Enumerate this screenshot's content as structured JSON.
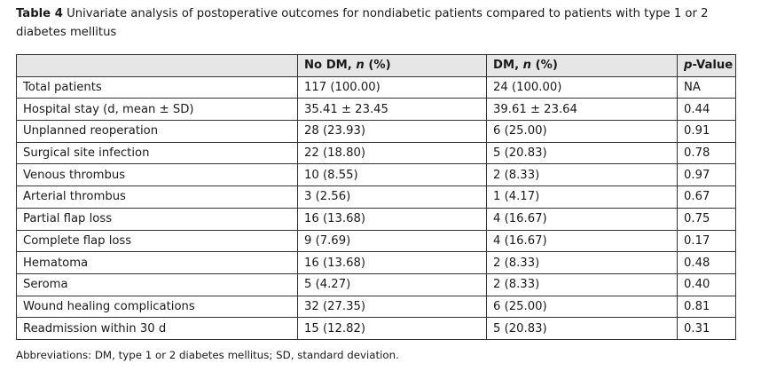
{
  "caption": {
    "label": "Table 4",
    "text": "Univariate analysis of postoperative outcomes for nondiabetic patients compared to patients with type 1 or 2 diabetes mellitus"
  },
  "table": {
    "headers": [
      {
        "pre": "",
        "italic": "",
        "post": ""
      },
      {
        "pre": "No DM, ",
        "italic": "n",
        "post": " (%)"
      },
      {
        "pre": "DM, ",
        "italic": "n",
        "post": " (%)"
      },
      {
        "pre": "",
        "italic": "p",
        "post": "-Value"
      }
    ],
    "rows": [
      [
        "Total patients",
        "117 (100.00)",
        "24 (100.00)",
        "NA"
      ],
      [
        "Hospital stay (d, mean ± SD)",
        "35.41 ± 23.45",
        "39.61 ± 23.64",
        "0.44"
      ],
      [
        "Unplanned reoperation",
        "28 (23.93)",
        "6 (25.00)",
        "0.91"
      ],
      [
        "Surgical site infection",
        "22 (18.80)",
        "5 (20.83)",
        "0.78"
      ],
      [
        "Venous thrombus",
        "10 (8.55)",
        "2 (8.33)",
        "0.97"
      ],
      [
        "Arterial thrombus",
        "3 (2.56)",
        "1 (4.17)",
        "0.67"
      ],
      [
        "Partial flap loss",
        "16 (13.68)",
        "4 (16.67)",
        "0.75"
      ],
      [
        "Complete flap loss",
        "9 (7.69)",
        "4 (16.67)",
        "0.17"
      ],
      [
        "Hematoma",
        "16 (13.68)",
        "2 (8.33)",
        "0.48"
      ],
      [
        "Seroma",
        "5 (4.27)",
        "2 (8.33)",
        "0.40"
      ],
      [
        "Wound healing complications",
        "32 (27.35)",
        "6 (25.00)",
        "0.81"
      ],
      [
        "Readmission within 30 d",
        "15 (12.82)",
        "5 (20.83)",
        "0.31"
      ]
    ]
  },
  "footnote": "Abbreviations: DM, type 1 or 2 diabetes mellitus; SD, standard deviation."
}
